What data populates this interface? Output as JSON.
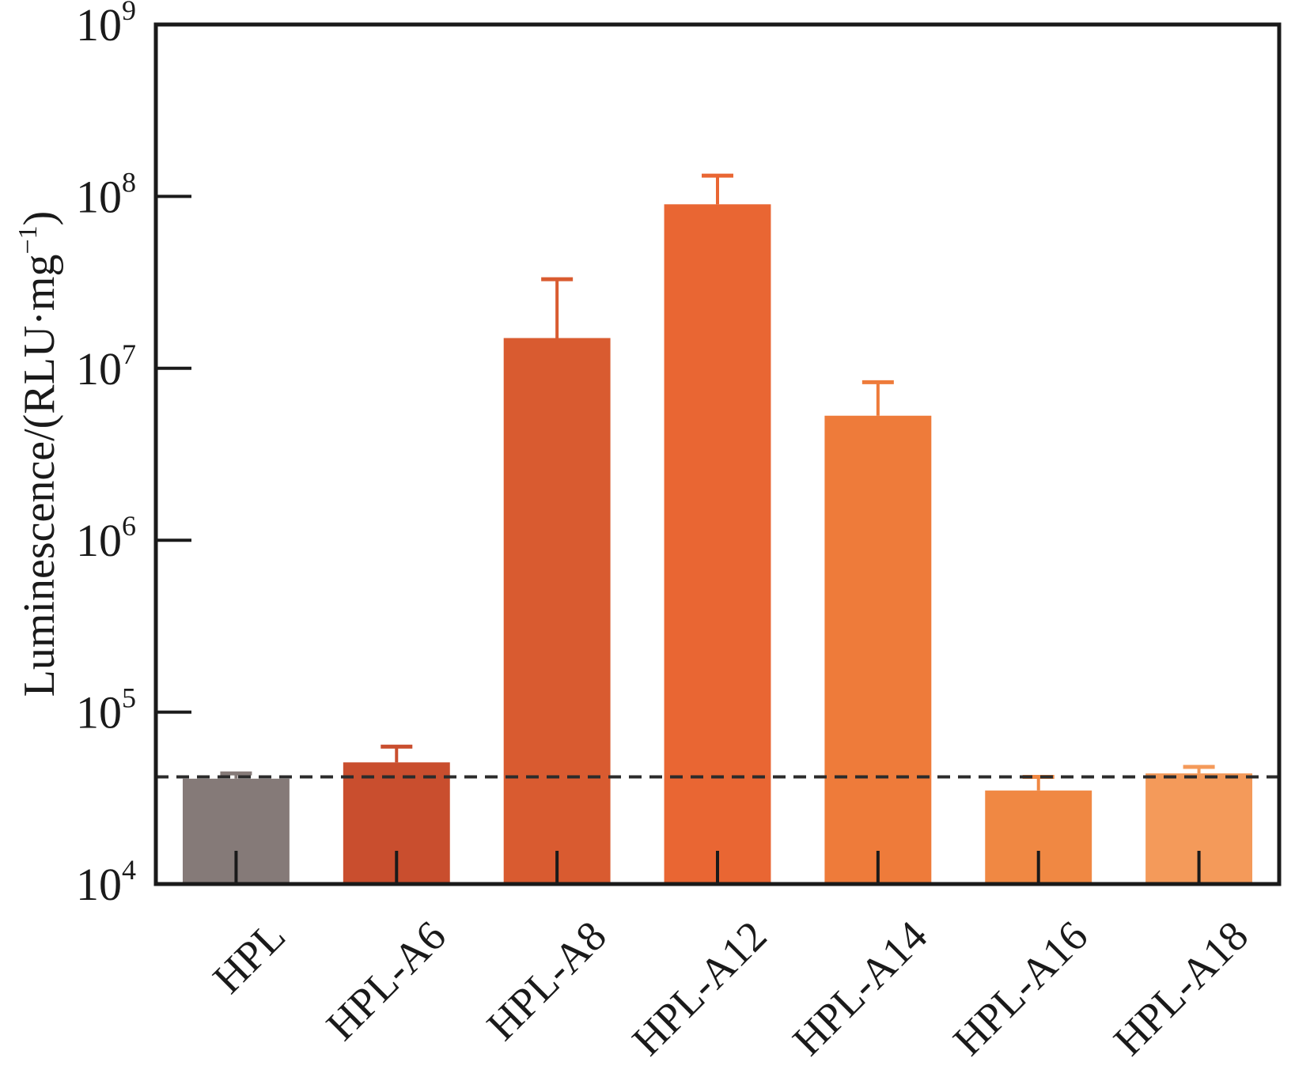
{
  "chart_data": {
    "type": "bar",
    "title": "",
    "xlabel": "",
    "ylabel": "Luminescence/(RLU·mg",
    "ylabel_sup": "−1",
    "ylabel_close": ")",
    "yscale": "log",
    "ylim": [
      10000,
      1000000000
    ],
    "yticks": [
      {
        "value": 10000,
        "base": "10",
        "exp": "4"
      },
      {
        "value": 100000,
        "base": "10",
        "exp": "5"
      },
      {
        "value": 1000000,
        "base": "10",
        "exp": "6"
      },
      {
        "value": 10000000,
        "base": "10",
        "exp": "7"
      },
      {
        "value": 100000000,
        "base": "10",
        "exp": "8"
      },
      {
        "value": 1000000000,
        "base": "10",
        "exp": "9"
      }
    ],
    "categories": [
      "HPL",
      "HPL-A6",
      "HPL-A8",
      "HPL-A12",
      "HPL-A14",
      "HPL-A16",
      "HPL-A18"
    ],
    "values": [
      41000,
      51000,
      15000000,
      90000000,
      5300000,
      35000,
      44000
    ],
    "errors_upper": [
      44000,
      63000,
      33000000,
      132000000,
      8300000,
      42000,
      48000
    ],
    "colors": [
      "#857a78",
      "#c94e2e",
      "#d95b30",
      "#e96633",
      "#ee7b3a",
      "#f08843",
      "#f49a5a"
    ],
    "reference_line": {
      "value": 42000,
      "style": "dashed",
      "color": "#2b2b2b"
    },
    "grid": false,
    "legend": "none"
  }
}
